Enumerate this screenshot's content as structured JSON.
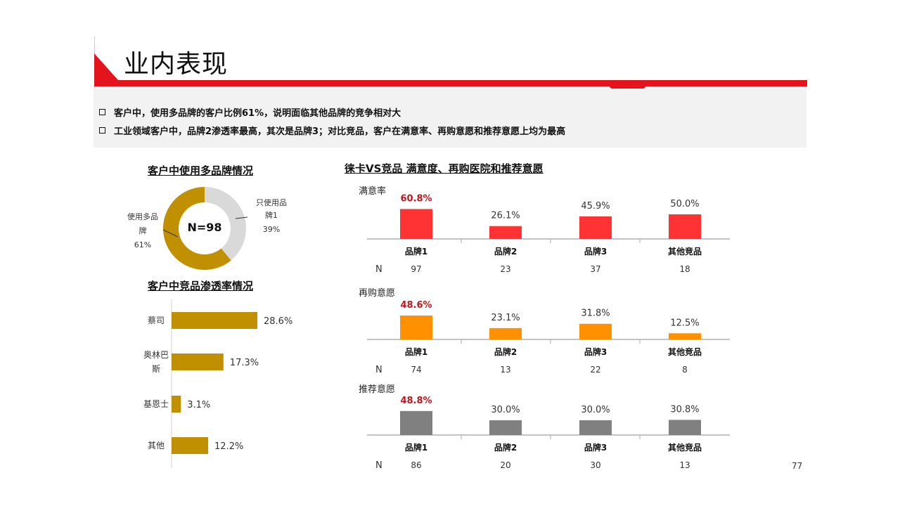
{
  "page": {
    "title": "业内表现",
    "page_number": "77"
  },
  "summary": [
    "客户中，使用多品牌的客户比例61%，说明面临其他品牌的竞争相对大",
    "工业领域客户中，品牌2渗透率最高，其次是品牌3；对比竞品，客户在满意率、再购意愿和推荐意愿上均为最高"
  ],
  "colors": {
    "brand_red": "#e3141b",
    "gold": "#c09000",
    "light_gray": "#d9d9d9",
    "sat_red": "#ff3333",
    "orange": "#ff9100",
    "gray": "#808080"
  },
  "chart_data": [
    {
      "type": "pie",
      "title": "客户中使用多品牌情况",
      "center_label": "N=98",
      "slices": [
        {
          "name": "只使用品牌1",
          "name_lines": [
            "只使用品",
            "牌1"
          ],
          "value": 39,
          "label": "39%",
          "color": "#d9d9d9"
        },
        {
          "name": "使用多品牌",
          "name_lines": [
            "使用多品",
            "牌"
          ],
          "value": 61,
          "label": "61%",
          "color": "#c09000"
        }
      ]
    },
    {
      "type": "bar",
      "orientation": "horizontal",
      "title": "客户中竞品渗透率情况",
      "categories": [
        "蔡司",
        "奥林巴斯",
        "基恩士",
        "其他"
      ],
      "category_lines": [
        [
          "蔡司"
        ],
        [
          "奥林巴",
          "斯"
        ],
        [
          "基恩士"
        ],
        [
          "其他"
        ]
      ],
      "values": [
        28.6,
        17.3,
        3.1,
        12.2
      ],
      "labels": [
        "28.6%",
        "17.3%",
        "3.1%",
        "12.2%"
      ],
      "color": "#c09000"
    },
    {
      "type": "bar",
      "title": "徕卡VS竞品 满意度、再购医院和推荐意愿",
      "categories": [
        "品牌1",
        "品牌2",
        "品牌3",
        "其他竞品"
      ],
      "n_label": "N",
      "panels": [
        {
          "name": "满意率",
          "color": "#ff3333",
          "values": [
            60.8,
            26.1,
            45.9,
            50.0
          ],
          "labels": [
            "60.8%",
            "26.1%",
            "45.9%",
            "50.0%"
          ],
          "n": [
            "97",
            "23",
            "37",
            "18"
          ]
        },
        {
          "name": "再购意愿",
          "color": "#ff9100",
          "values": [
            48.6,
            23.1,
            31.8,
            12.5
          ],
          "labels": [
            "48.6%",
            "23.1%",
            "31.8%",
            "12.5%"
          ],
          "n": [
            "74",
            "13",
            "22",
            "8"
          ]
        },
        {
          "name": "推荐意愿",
          "color": "#808080",
          "values": [
            48.8,
            30.0,
            30.0,
            30.8
          ],
          "labels": [
            "48.8%",
            "30.0%",
            "30.0%",
            "30.8%"
          ],
          "n": [
            "86",
            "20",
            "30",
            "13"
          ]
        }
      ]
    }
  ]
}
